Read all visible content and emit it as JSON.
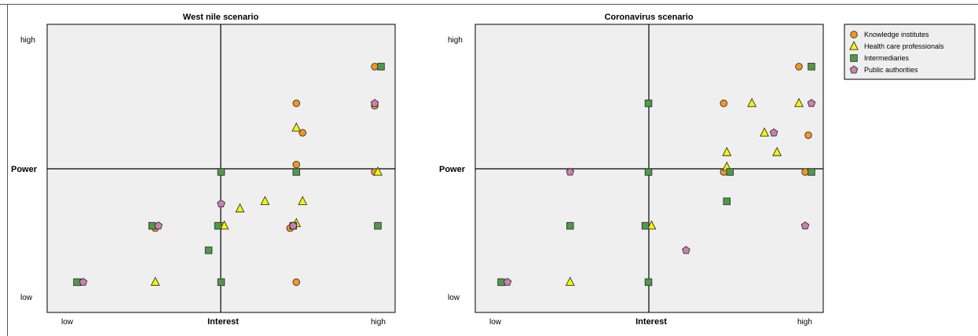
{
  "chart_data": [
    {
      "type": "scatter",
      "title": "West nile scenario",
      "xlabel": "Interest",
      "ylabel": "Power",
      "xlim": [
        0,
        10
      ],
      "ylim": [
        0,
        10
      ],
      "x_tick_labels": {
        "low": "low",
        "high": "high"
      },
      "y_tick_labels": {
        "low": "low",
        "high": "high"
      },
      "grid": false,
      "series": [
        {
          "name": "Knowledge institutes",
          "points": [
            [
              0.5,
              0.5
            ],
            [
              2.9,
              2.7
            ],
            [
              5.0,
              5.0
            ],
            [
              5.0,
              2.8
            ],
            [
              7.4,
              5.3
            ],
            [
              7.6,
              6.6
            ],
            [
              7.4,
              7.8
            ],
            [
              7.4,
              0.5
            ],
            [
              7.2,
              2.7
            ],
            [
              9.9,
              9.3
            ],
            [
              9.9,
              7.7
            ],
            [
              9.9,
              5.0
            ]
          ]
        },
        {
          "name": "Health care professionals",
          "points": [
            [
              2.9,
              0.5
            ],
            [
              5.1,
              2.8
            ],
            [
              5.6,
              3.5
            ],
            [
              6.4,
              3.8
            ],
            [
              7.4,
              6.8
            ],
            [
              7.6,
              3.8
            ],
            [
              7.4,
              2.9
            ],
            [
              10.0,
              5.0
            ]
          ]
        },
        {
          "name": "Intermediaries",
          "points": [
            [
              0.4,
              0.5
            ],
            [
              2.8,
              2.8
            ],
            [
              5.0,
              5.0
            ],
            [
              4.9,
              2.8
            ],
            [
              4.6,
              1.8
            ],
            [
              5.0,
              0.5
            ],
            [
              7.4,
              5.0
            ],
            [
              7.3,
              2.8
            ],
            [
              10.1,
              9.3
            ],
            [
              10.0,
              2.8
            ]
          ]
        },
        {
          "name": "Public authorities",
          "points": [
            [
              0.6,
              0.5
            ],
            [
              3.0,
              2.8
            ],
            [
              5.0,
              3.7
            ],
            [
              7.3,
              2.8
            ],
            [
              9.9,
              7.8
            ]
          ]
        }
      ]
    },
    {
      "type": "scatter",
      "title": "Coronavirus scenario",
      "xlabel": "Interest",
      "ylabel": "Power",
      "xlim": [
        0,
        10
      ],
      "ylim": [
        0,
        10
      ],
      "x_tick_labels": {
        "low": "low",
        "high": "high"
      },
      "y_tick_labels": {
        "low": "low",
        "high": "high"
      },
      "grid": false,
      "series": [
        {
          "name": "Knowledge institutes",
          "points": [
            [
              7.4,
              7.8
            ],
            [
              7.4,
              5.0
            ],
            [
              9.8,
              9.3
            ],
            [
              10.0,
              5.0
            ],
            [
              10.1,
              6.5
            ]
          ]
        },
        {
          "name": "Health care professionals",
          "points": [
            [
              2.5,
              0.5
            ],
            [
              5.1,
              2.8
            ],
            [
              7.5,
              5.2
            ],
            [
              7.5,
              5.8
            ],
            [
              8.3,
              7.8
            ],
            [
              8.7,
              6.6
            ],
            [
              9.1,
              5.8
            ],
            [
              9.8,
              7.8
            ]
          ]
        },
        {
          "name": "Intermediaries",
          "points": [
            [
              0.3,
              0.5
            ],
            [
              2.5,
              2.8
            ],
            [
              5.0,
              5.0
            ],
            [
              4.9,
              2.8
            ],
            [
              5.0,
              0.5
            ],
            [
              5.0,
              7.8
            ],
            [
              7.6,
              5.0
            ],
            [
              7.5,
              3.8
            ],
            [
              10.2,
              9.3
            ],
            [
              10.2,
              5.0
            ]
          ]
        },
        {
          "name": "Public authorities",
          "points": [
            [
              0.5,
              0.5
            ],
            [
              2.5,
              5.0
            ],
            [
              6.2,
              1.8
            ],
            [
              9.0,
              6.6
            ],
            [
              10.2,
              7.8
            ],
            [
              10.0,
              2.8
            ]
          ]
        }
      ]
    }
  ],
  "legend": {
    "placement": "top-right",
    "items": [
      {
        "label": "Knowledge institutes",
        "shape": "circle",
        "color": "#f5961e"
      },
      {
        "label": "Health care professionals",
        "shape": "triangle",
        "color": "#f5f500"
      },
      {
        "label": "Intermediaries",
        "shape": "square",
        "color": "#4f9a4a"
      },
      {
        "label": "Public authorities",
        "shape": "pentagon",
        "color": "#cc7fb0"
      }
    ]
  },
  "colors": {
    "panel_bg": "#efefef",
    "axis": "#000000",
    "marker_stroke": "#333333"
  }
}
